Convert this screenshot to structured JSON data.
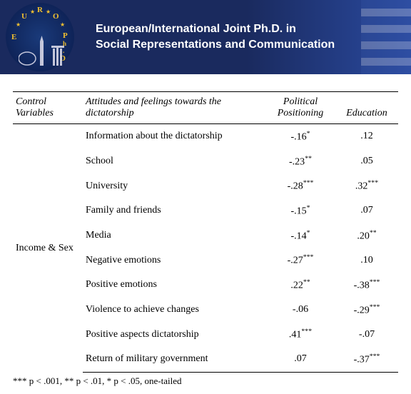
{
  "banner": {
    "line1": "European/International Joint Ph.D. in",
    "line2": "Social Representations and Communication",
    "logo_letters": [
      "E",
      "U",
      "R",
      "O",
      "P",
      "h",
      ".",
      "D"
    ]
  },
  "table": {
    "headers": {
      "control": "Control Variables",
      "attitudes": "Attitudes and feelings towards the dictatorship",
      "pp": "Political Positioning",
      "edu": "Education"
    },
    "control_label": "Income & Sex",
    "rows": [
      {
        "label": "Information about the dictatorship",
        "pp": "-.16",
        "pp_sig": "*",
        "edu": ".12",
        "edu_sig": ""
      },
      {
        "label": "School",
        "pp": "-.23",
        "pp_sig": "**",
        "edu": ".05",
        "edu_sig": ""
      },
      {
        "label": "University",
        "pp": "-.28",
        "pp_sig": "***",
        "edu": ".32",
        "edu_sig": "***"
      },
      {
        "label": "Family and friends",
        "pp": "-.15",
        "pp_sig": "*",
        "edu": ".07",
        "edu_sig": ""
      },
      {
        "label": "Media",
        "pp": "-.14",
        "pp_sig": "*",
        "edu": ".20",
        "edu_sig": "**"
      },
      {
        "label": "Negative emotions",
        "pp": "-.27",
        "pp_sig": "***",
        "edu": ".10",
        "edu_sig": ""
      },
      {
        "label": "Positive emotions",
        "pp": ".22",
        "pp_sig": "**",
        "edu": "-.38",
        "edu_sig": "***"
      },
      {
        "label": "Violence to achieve changes",
        "pp": "-.06",
        "pp_sig": "",
        "edu": "-.29",
        "edu_sig": "***"
      },
      {
        "label": "Positive aspects dictatorship",
        "pp": ".41",
        "pp_sig": "***",
        "edu": "-.07",
        "edu_sig": ""
      },
      {
        "label": "Return of  military government",
        "pp": ".07",
        "pp_sig": "",
        "edu": "-.37",
        "edu_sig": "***"
      }
    ],
    "footnote": "*** p < .001, ** p <  .01, * p < .05, one-tailed"
  },
  "style": {
    "banner_bg_left": "#1a2a5e",
    "banner_bg_right": "#2a4aa0",
    "logo_gold": "#f0c030",
    "text_color": "#000000",
    "font_family": "Times New Roman",
    "font_size_body": 14,
    "font_size_banner": 16
  }
}
